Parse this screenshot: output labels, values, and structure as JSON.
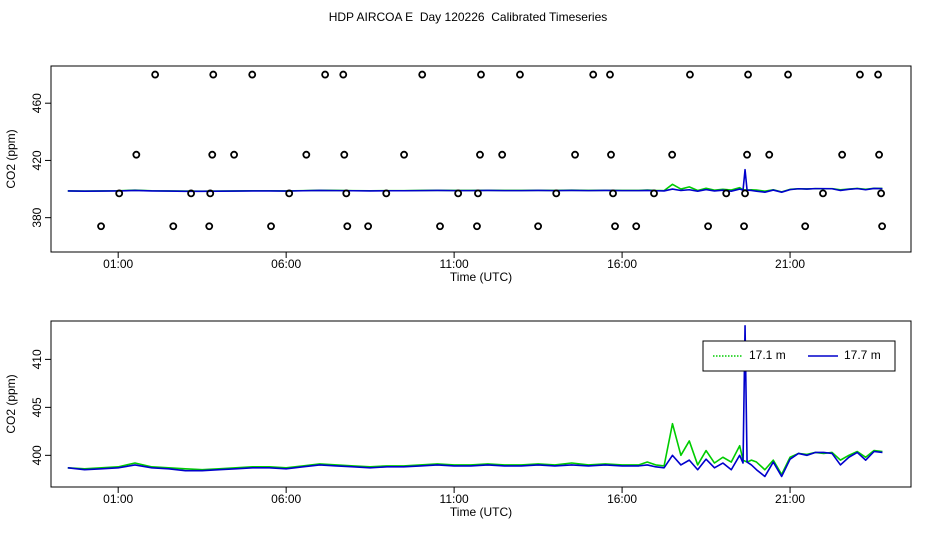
{
  "chart_data": [
    {
      "type": "line",
      "title": "HDP AIRCOA E  Day 120226  Calibrated Timeseries",
      "xlabel": "Time (UTC)",
      "ylabel": "CO2 (ppm)",
      "xlim": [
        -1,
        24.6
      ],
      "ylim": [
        356,
        486
      ],
      "xticks": [
        {
          "value": 1,
          "label": "01:00"
        },
        {
          "value": 6,
          "label": "06:00"
        },
        {
          "value": 11,
          "label": "11:00"
        },
        {
          "value": 16,
          "label": "16:00"
        },
        {
          "value": 21,
          "label": "21:00"
        }
      ],
      "yticks": [
        380,
        420,
        460
      ],
      "x": [
        -0.5,
        0,
        0.5,
        1,
        1.5,
        2,
        2.5,
        3,
        3.5,
        4,
        4.5,
        5,
        5.5,
        6,
        6.5,
        7,
        7.5,
        8,
        8.5,
        9,
        9.5,
        10,
        10.5,
        11,
        11.5,
        12,
        12.5,
        13,
        13.5,
        14,
        14.5,
        15,
        15.5,
        16,
        16.5,
        16.75,
        17,
        17.25,
        17.5,
        17.75,
        18,
        18.25,
        18.5,
        18.75,
        19,
        19.25,
        19.5,
        19.6,
        19.66,
        19.72,
        19.85,
        20,
        20.25,
        20.5,
        20.75,
        21,
        21.25,
        21.5,
        21.75,
        22,
        22.25,
        22.5,
        22.75,
        23,
        23.25,
        23.5,
        23.75
      ],
      "series": [
        {
          "color": "#00cc00",
          "values": [
            398.7,
            398.6,
            398.7,
            398.8,
            399.2,
            398.8,
            398.7,
            398.6,
            398.5,
            398.6,
            398.7,
            398.8,
            398.8,
            398.7,
            398.9,
            399.1,
            399.0,
            398.9,
            398.8,
            398.9,
            398.9,
            399.0,
            399.1,
            399.0,
            399.0,
            399.1,
            399.0,
            399.0,
            399.1,
            399.0,
            399.2,
            399.0,
            399.1,
            399.0,
            399.0,
            399.3,
            399.0,
            398.9,
            403.3,
            400.0,
            401.5,
            399.0,
            400.5,
            399.2,
            399.8,
            399.3,
            401.0,
            399.5,
            399.4,
            399.3,
            399.5,
            399.3,
            398.5,
            399.5,
            398.0,
            399.8,
            400.2,
            400.1,
            400.3,
            400.2,
            400.3,
            399.5,
            400.0,
            400.4,
            399.8,
            400.5,
            400.4
          ]
        },
        {
          "color": "#0000cc",
          "values": [
            398.7,
            398.5,
            398.6,
            398.7,
            399.0,
            398.7,
            398.6,
            398.4,
            398.4,
            398.5,
            398.6,
            398.7,
            398.7,
            398.6,
            398.8,
            399.0,
            398.9,
            398.8,
            398.7,
            398.8,
            398.8,
            398.9,
            399.0,
            398.9,
            398.9,
            399.0,
            398.9,
            398.9,
            399.0,
            398.9,
            399.0,
            398.9,
            399.0,
            398.9,
            398.9,
            399.0,
            398.8,
            398.7,
            400.0,
            399.0,
            399.5,
            398.5,
            399.6,
            398.7,
            399.2,
            398.5,
            400.0,
            399.2,
            413.5,
            399.3,
            399.0,
            398.5,
            397.8,
            399.3,
            397.8,
            399.6,
            400.2,
            400.0,
            400.3,
            400.3,
            400.2,
            399.0,
            399.8,
            400.3,
            399.5,
            400.4,
            400.3
          ]
        }
      ],
      "markers": {
        "color": "#000000",
        "x": [
          2.1,
          3.83,
          4.99,
          7.16,
          7.7,
          10.05,
          11.8,
          12.96,
          15.14,
          15.64,
          18.02,
          19.75,
          20.94,
          23.08,
          23.62,
          1.54,
          3.8,
          4.45,
          6.6,
          7.73,
          9.51,
          11.77,
          12.43,
          14.6,
          15.67,
          17.49,
          19.72,
          20.38,
          22.55,
          23.65,
          1.03,
          3.17,
          3.74,
          6.09,
          7.79,
          8.98,
          11.12,
          11.71,
          14.04,
          15.73,
          16.95,
          19.1,
          19.66,
          21.98,
          23.71,
          0.49,
          2.64,
          3.71,
          5.55,
          7.82,
          8.44,
          10.58,
          11.68,
          13.5,
          15.79,
          16.42,
          18.56,
          19.63,
          21.45,
          23.74
        ],
        "values": [
          480,
          480,
          480,
          480,
          480,
          480,
          480,
          480,
          480,
          480,
          480,
          480,
          480,
          480,
          480,
          424,
          424,
          424,
          424,
          424,
          424,
          424,
          424,
          424,
          424,
          424,
          424,
          424,
          424,
          424,
          397,
          397,
          397,
          397,
          397,
          397,
          397,
          397,
          397,
          397,
          397,
          397,
          397,
          397,
          397,
          374,
          374,
          374,
          374,
          374,
          374,
          374,
          374,
          374,
          374,
          374,
          374,
          374,
          374,
          374
        ]
      }
    },
    {
      "type": "line",
      "xlabel": "Time (UTC)",
      "ylabel": "CO2 (ppm)",
      "legend": "top-right",
      "xlim": [
        -1,
        24.6
      ],
      "ylim": [
        396.7,
        414
      ],
      "xticks": [
        {
          "value": 1,
          "label": "01:00"
        },
        {
          "value": 6,
          "label": "06:00"
        },
        {
          "value": 11,
          "label": "11:00"
        },
        {
          "value": 16,
          "label": "16:00"
        },
        {
          "value": 21,
          "label": "21:00"
        }
      ],
      "yticks": [
        400,
        405,
        410
      ],
      "x": [
        -0.5,
        0,
        0.5,
        1,
        1.5,
        2,
        2.5,
        3,
        3.5,
        4,
        4.5,
        5,
        5.5,
        6,
        6.5,
        7,
        7.5,
        8,
        8.5,
        9,
        9.5,
        10,
        10.5,
        11,
        11.5,
        12,
        12.5,
        13,
        13.5,
        14,
        14.5,
        15,
        15.5,
        16,
        16.5,
        16.75,
        17,
        17.25,
        17.5,
        17.75,
        18,
        18.25,
        18.5,
        18.75,
        19,
        19.25,
        19.5,
        19.6,
        19.66,
        19.72,
        19.85,
        20,
        20.25,
        20.5,
        20.75,
        21,
        21.25,
        21.5,
        21.75,
        22,
        22.25,
        22.5,
        22.75,
        23,
        23.25,
        23.5,
        23.75
      ],
      "series": [
        {
          "name": "17.1 m",
          "color": "#00cc00",
          "dashed": true,
          "values": [
            398.7,
            398.6,
            398.7,
            398.8,
            399.2,
            398.8,
            398.7,
            398.6,
            398.5,
            398.6,
            398.7,
            398.8,
            398.8,
            398.7,
            398.9,
            399.1,
            399.0,
            398.9,
            398.8,
            398.9,
            398.9,
            399.0,
            399.1,
            399.0,
            399.0,
            399.1,
            399.0,
            399.0,
            399.1,
            399.0,
            399.2,
            399.0,
            399.1,
            399.0,
            399.0,
            399.3,
            399.0,
            398.9,
            403.3,
            400.0,
            401.5,
            399.0,
            400.5,
            399.2,
            399.8,
            399.3,
            401.0,
            399.5,
            399.4,
            399.3,
            399.5,
            399.3,
            398.5,
            399.5,
            398.0,
            399.8,
            400.2,
            400.1,
            400.3,
            400.2,
            400.3,
            399.5,
            400.0,
            400.4,
            399.8,
            400.5,
            400.4
          ]
        },
        {
          "name": "17.7 m",
          "color": "#0000cc",
          "dashed": false,
          "values": [
            398.7,
            398.5,
            398.6,
            398.7,
            399.0,
            398.7,
            398.6,
            398.4,
            398.4,
            398.5,
            398.6,
            398.7,
            398.7,
            398.6,
            398.8,
            399.0,
            398.9,
            398.8,
            398.7,
            398.8,
            398.8,
            398.9,
            399.0,
            398.9,
            398.9,
            399.0,
            398.9,
            398.9,
            399.0,
            398.9,
            399.0,
            398.9,
            399.0,
            398.9,
            398.9,
            399.0,
            398.8,
            398.7,
            400.0,
            399.0,
            399.5,
            398.5,
            399.6,
            398.7,
            399.2,
            398.5,
            400.0,
            399.2,
            413.5,
            399.3,
            399.0,
            398.5,
            397.8,
            399.3,
            397.8,
            399.6,
            400.2,
            400.0,
            400.3,
            400.3,
            400.2,
            399.0,
            399.8,
            400.3,
            399.5,
            400.4,
            400.3
          ]
        }
      ]
    }
  ]
}
